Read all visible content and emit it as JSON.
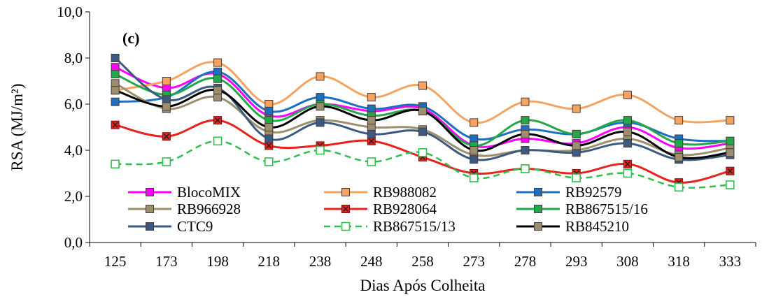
{
  "chart_data": {
    "type": "line",
    "panel_label": "(c)",
    "xlabel": "Dias Após Colheita",
    "ylabel": "RSA (MJ/m²)",
    "categories": [
      "125",
      "173",
      "198",
      "218",
      "238",
      "248",
      "258",
      "273",
      "278",
      "293",
      "308",
      "318",
      "333"
    ],
    "ylim": [
      0,
      10
    ],
    "yticks": [
      "0,0",
      "2,0",
      "4,0",
      "6,0",
      "8,0",
      "10,0"
    ],
    "grid": false,
    "legend_position": "bottom-inside",
    "series": [
      {
        "name": "BlocoMIX",
        "color": "#ff00ff",
        "marker": "square",
        "dashed": false,
        "values": [
          7.6,
          6.7,
          7.3,
          5.5,
          6.0,
          5.7,
          5.8,
          4.2,
          4.5,
          4.3,
          5.0,
          4.1,
          4.3
        ]
      },
      {
        "name": "RB988082",
        "color": "#f4a460",
        "marker": "square",
        "dashed": false,
        "values": [
          6.6,
          7.0,
          7.8,
          6.0,
          7.2,
          6.3,
          6.8,
          5.2,
          6.1,
          5.8,
          6.4,
          5.3,
          5.3
        ]
      },
      {
        "name": "RB92579",
        "color": "#1f6fc0",
        "marker": "square",
        "dashed": false,
        "values": [
          6.1,
          6.3,
          7.4,
          5.7,
          6.3,
          5.8,
          5.9,
          4.5,
          4.9,
          4.7,
          5.2,
          4.5,
          4.4
        ]
      },
      {
        "name": "RB966928",
        "color": "#9c8f6e",
        "marker": "square",
        "dashed": false,
        "values": [
          6.9,
          5.8,
          6.3,
          4.8,
          5.3,
          5.0,
          4.9,
          3.8,
          4.0,
          4.0,
          4.5,
          3.8,
          4.1
        ]
      },
      {
        "name": "RB928064",
        "color": "#e8221c",
        "marker": "x",
        "dashed": false,
        "values": [
          5.1,
          4.6,
          5.3,
          4.2,
          4.2,
          4.4,
          3.7,
          3.0,
          3.2,
          3.0,
          3.4,
          2.6,
          3.1
        ]
      },
      {
        "name": "RB867515/16",
        "color": "#22a84a",
        "marker": "square",
        "dashed": false,
        "values": [
          7.3,
          6.4,
          7.1,
          5.3,
          6.0,
          5.5,
          5.7,
          4.2,
          5.3,
          4.7,
          5.3,
          4.3,
          4.4
        ]
      },
      {
        "name": "CTC9",
        "color": "#3a5a82",
        "marker": "square",
        "dashed": false,
        "values": [
          8.0,
          6.2,
          6.7,
          4.5,
          5.2,
          4.7,
          4.8,
          3.6,
          4.0,
          3.9,
          4.3,
          3.6,
          3.8
        ]
      },
      {
        "name": "RB867515/13",
        "color": "#2ebf4e",
        "marker": "open-square",
        "dashed": true,
        "values": [
          3.4,
          3.5,
          4.4,
          3.5,
          4.0,
          3.5,
          3.9,
          2.8,
          3.2,
          2.8,
          3.0,
          2.4,
          2.5
        ]
      },
      {
        "name": "RB845210",
        "color": "#000000",
        "marker": "square",
        "dashed": false,
        "marker_fill": "#9c8f6e",
        "values": [
          6.6,
          5.9,
          6.6,
          5.0,
          5.9,
          5.3,
          5.7,
          4.0,
          4.7,
          4.2,
          4.8,
          3.7,
          3.9
        ]
      }
    ]
  }
}
